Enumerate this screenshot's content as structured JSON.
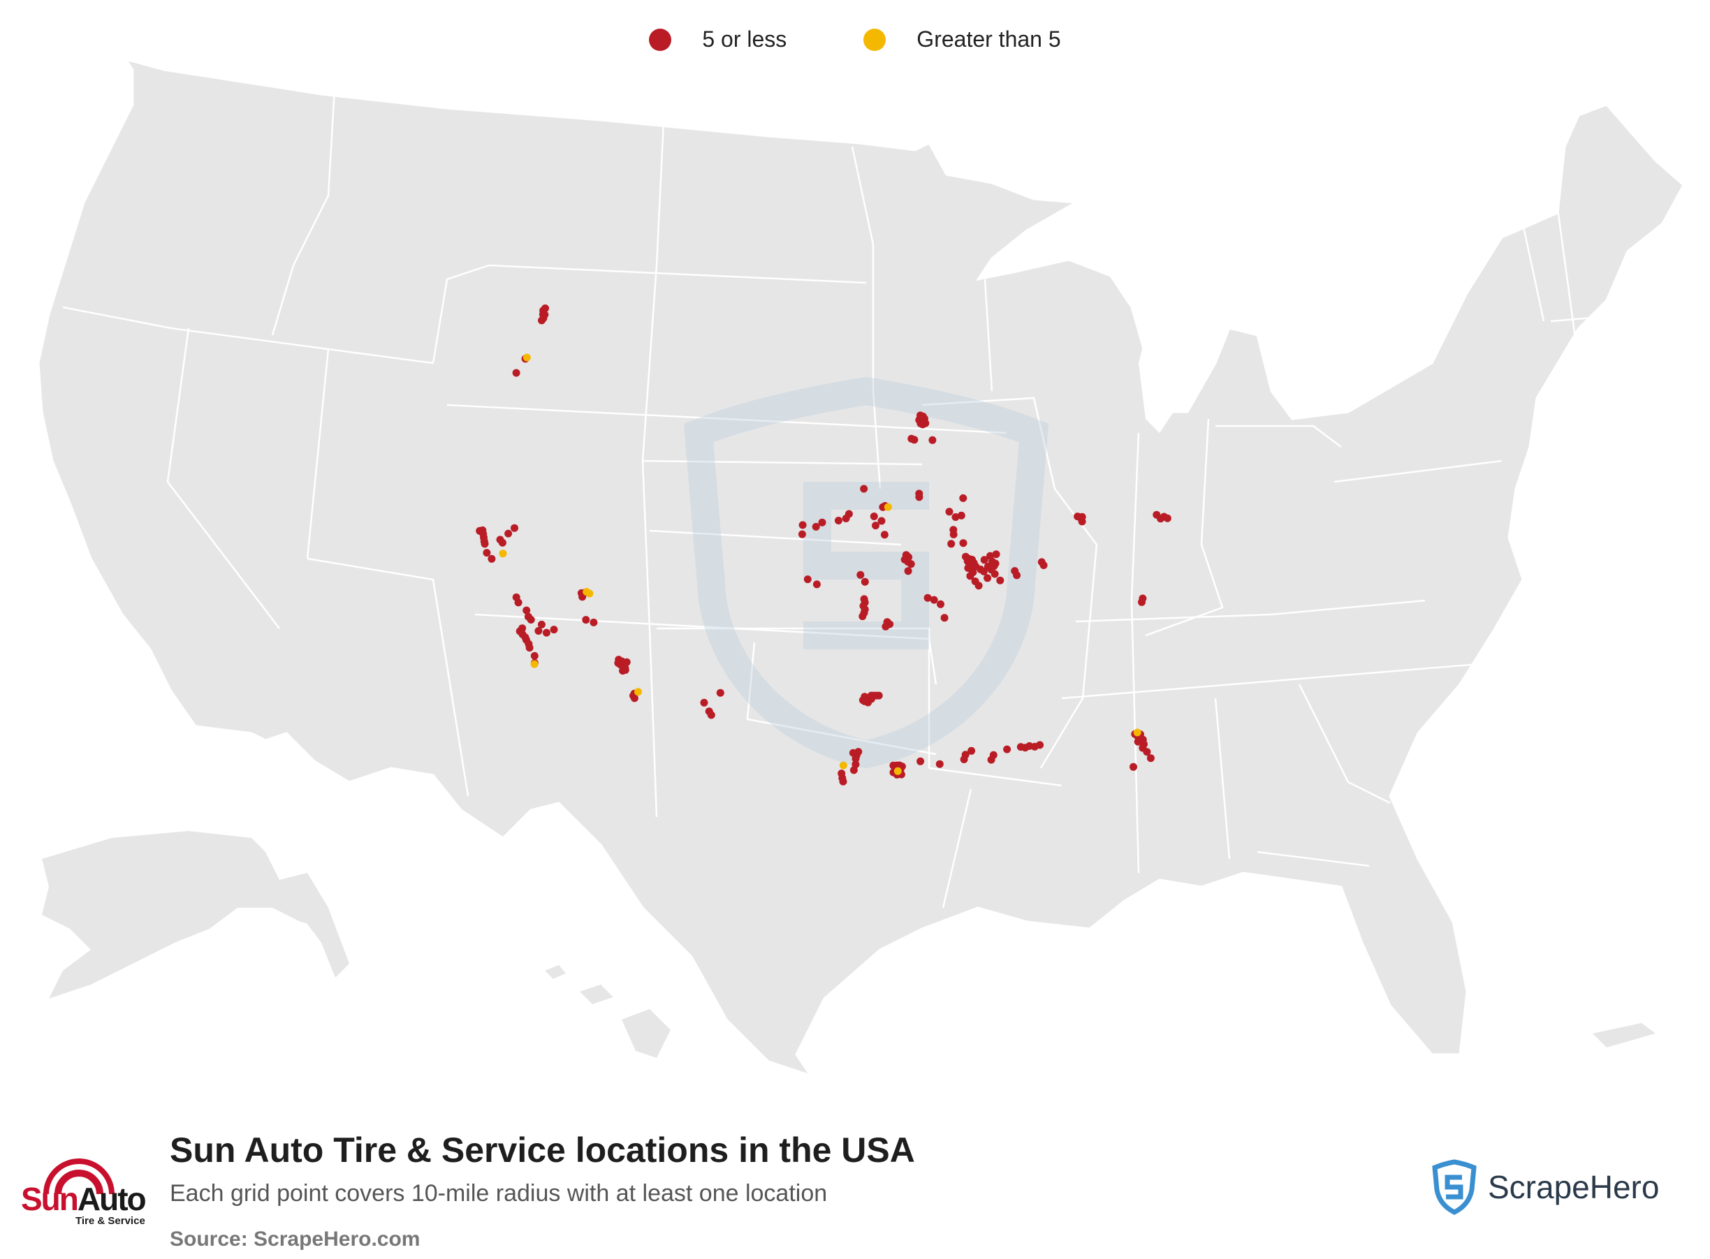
{
  "legend": {
    "items": [
      {
        "label": "5 or less",
        "color": "#b91c25"
      },
      {
        "label": "Greater than 5",
        "color": "#f5b800"
      }
    ]
  },
  "footer": {
    "title": "Sun Auto Tire & Service locations in the USA",
    "subtitle": "Each grid point covers 10-mile radius with at least one location",
    "source": "Source: ScrapeHero.com"
  },
  "brand": {
    "name_part1": "Sun",
    "name_part2": "Auto",
    "tagline": "Tire & Service"
  },
  "scrapehero": {
    "name": "ScrapeHero",
    "color": "#3a8fd0"
  },
  "map": {
    "land_color": "#e6e6e6",
    "border_color": "#ffffff"
  },
  "points": {
    "color_low": "#b91c25",
    "color_high": "#f5b800",
    "low": [
      [
        44.83,
        -123.03
      ],
      [
        45.53,
        -122.68
      ],
      [
        47.88,
        -122.3
      ],
      [
        47.76,
        -122.4
      ],
      [
        47.61,
        -122.2
      ],
      [
        47.6,
        -122.33
      ],
      [
        47.44,
        -122.22
      ],
      [
        47.33,
        -122.3
      ],
      [
        37.84,
        -122.25
      ],
      [
        37.78,
        -122.42
      ],
      [
        37.7,
        -122.15
      ],
      [
        37.55,
        -122.05
      ],
      [
        37.4,
        -121.95
      ],
      [
        37.3,
        -121.88
      ],
      [
        37.65,
        -121.0
      ],
      [
        37.55,
        -120.8
      ],
      [
        36.95,
        -121.6
      ],
      [
        36.75,
        -121.2
      ],
      [
        38.0,
        -120.6
      ],
      [
        38.3,
        -120.3
      ],
      [
        35.4,
        -119.1
      ],
      [
        35.2,
        -118.9
      ],
      [
        34.95,
        -118.3
      ],
      [
        34.7,
        -118.1
      ],
      [
        34.6,
        -117.9
      ],
      [
        34.5,
        -117.2
      ],
      [
        34.2,
        -117.3
      ],
      [
        34.2,
        -116.8
      ],
      [
        34.4,
        -116.4
      ],
      [
        34.15,
        -118.3
      ],
      [
        34.0,
        -118.4
      ],
      [
        33.9,
        -118.2
      ],
      [
        33.8,
        -118.0
      ],
      [
        33.7,
        -117.9
      ],
      [
        33.55,
        -117.7
      ],
      [
        33.4,
        -117.6
      ],
      [
        33.1,
        -117.2
      ],
      [
        32.8,
        -117.1
      ],
      [
        36.2,
        -115.2
      ],
      [
        36.05,
        -115.1
      ],
      [
        36.25,
        -115.0
      ],
      [
        35.1,
        -114.6
      ],
      [
        35.05,
        -114.1
      ],
      [
        33.65,
        -112.2
      ],
      [
        33.6,
        -112.0
      ],
      [
        33.55,
        -111.9
      ],
      [
        33.5,
        -112.2
      ],
      [
        33.45,
        -112.05
      ],
      [
        33.4,
        -111.9
      ],
      [
        33.35,
        -111.75
      ],
      [
        33.2,
        -111.85
      ],
      [
        33.25,
        -111.7
      ],
      [
        33.6,
        -111.7
      ],
      [
        32.3,
        -110.95
      ],
      [
        32.2,
        -111.0
      ],
      [
        32.1,
        -110.9
      ],
      [
        32.3,
        -106.8
      ],
      [
        31.95,
        -106.45
      ],
      [
        31.8,
        -106.3
      ],
      [
        32.8,
        -105.9
      ],
      [
        45.15,
        -93.3
      ],
      [
        45.1,
        -93.1
      ],
      [
        45.05,
        -93.3
      ],
      [
        45.0,
        -93.2
      ],
      [
        45.0,
        -93.0
      ],
      [
        44.95,
        -93.4
      ],
      [
        44.9,
        -93.25
      ],
      [
        44.85,
        -93.1
      ],
      [
        44.8,
        -93.3
      ],
      [
        44.75,
        -93.15
      ],
      [
        44.8,
        -92.95
      ],
      [
        44.15,
        -94.0
      ],
      [
        44.1,
        -93.8
      ],
      [
        44.05,
        -92.5
      ],
      [
        41.25,
        -95.95
      ],
      [
        41.2,
        -96.1
      ],
      [
        40.8,
        -96.7
      ],
      [
        40.6,
        -96.2
      ],
      [
        40.4,
        -96.6
      ],
      [
        40.0,
        -96.0
      ],
      [
        40.9,
        -98.4
      ],
      [
        40.7,
        -98.6
      ],
      [
        40.6,
        -99.1
      ],
      [
        40.5,
        -100.2
      ],
      [
        40.3,
        -100.6
      ],
      [
        40.35,
        -101.5
      ],
      [
        39.95,
        -101.5
      ],
      [
        42.0,
        -97.4
      ],
      [
        39.1,
        -94.6
      ],
      [
        39.0,
        -94.45
      ],
      [
        38.9,
        -94.7
      ],
      [
        38.8,
        -94.5
      ],
      [
        38.7,
        -94.3
      ],
      [
        38.4,
        -94.5
      ],
      [
        38.25,
        -97.6
      ],
      [
        37.95,
        -97.3
      ],
      [
        38.0,
        -101.0
      ],
      [
        37.8,
        -100.4
      ],
      [
        37.2,
        -97.35
      ],
      [
        37.05,
        -97.3
      ],
      [
        36.9,
        -97.4
      ],
      [
        36.75,
        -97.3
      ],
      [
        36.6,
        -97.35
      ],
      [
        36.45,
        -97.45
      ],
      [
        36.2,
        -95.9
      ],
      [
        36.1,
        -95.75
      ],
      [
        36.0,
        -96.0
      ],
      [
        37.2,
        -93.3
      ],
      [
        37.1,
        -92.9
      ],
      [
        36.9,
        -92.5
      ],
      [
        36.3,
        -92.3
      ],
      [
        38.9,
        -90.7
      ],
      [
        38.8,
        -90.5
      ],
      [
        38.75,
        -90.3
      ],
      [
        38.7,
        -90.6
      ],
      [
        38.65,
        -90.4
      ],
      [
        38.6,
        -90.2
      ],
      [
        38.55,
        -90.5
      ],
      [
        38.5,
        -90.35
      ],
      [
        38.45,
        -90.1
      ],
      [
        38.4,
        -90.6
      ],
      [
        38.35,
        -90.4
      ],
      [
        38.2,
        -90.3
      ],
      [
        38.05,
        -90.5
      ],
      [
        37.8,
        -90.2
      ],
      [
        37.6,
        -90.0
      ],
      [
        39.9,
        -91.4
      ],
      [
        39.5,
        -90.8
      ],
      [
        38.3,
        -89.8
      ],
      [
        38.7,
        -89.5
      ],
      [
        38.85,
        -89.1
      ],
      [
        38.9,
        -88.7
      ],
      [
        38.6,
        -89.0
      ],
      [
        38.4,
        -89.3
      ],
      [
        38.2,
        -89.6
      ],
      [
        38.05,
        -88.9
      ],
      [
        37.9,
        -89.4
      ],
      [
        37.75,
        -88.6
      ],
      [
        38.5,
        -88.8
      ],
      [
        38.4,
        -88.9
      ],
      [
        38.25,
        -89.1
      ],
      [
        38.1,
        -87.6
      ],
      [
        37.9,
        -87.5
      ],
      [
        38.2,
        -85.7
      ],
      [
        38.35,
        -85.8
      ],
      [
        39.5,
        -91.6
      ],
      [
        40.1,
        -91.4
      ],
      [
        40.65,
        -91.2
      ],
      [
        40.7,
        -90.8
      ],
      [
        40.9,
        -91.6
      ],
      [
        41.45,
        -90.6
      ],
      [
        41.6,
        -93.6
      ],
      [
        41.75,
        -93.6
      ],
      [
        30.0,
        -90.05
      ],
      [
        30.2,
        -89.9
      ],
      [
        30.4,
        -89.1
      ],
      [
        30.45,
        -88.3
      ],
      [
        30.4,
        -88.05
      ],
      [
        30.45,
        -87.8
      ],
      [
        30.4,
        -87.5
      ],
      [
        30.45,
        -87.2
      ],
      [
        30.3,
        -91.5
      ],
      [
        30.45,
        -91.15
      ],
      [
        30.1,
        -91.6
      ],
      [
        29.95,
        -93.0
      ],
      [
        30.1,
        -94.1
      ],
      [
        33.0,
        -96.9
      ],
      [
        33.0,
        -96.75
      ],
      [
        33.0,
        -96.6
      ],
      [
        33.0,
        -96.45
      ],
      [
        32.95,
        -97.3
      ],
      [
        32.9,
        -97.1
      ],
      [
        32.85,
        -96.9
      ],
      [
        32.8,
        -97.4
      ],
      [
        32.75,
        -97.3
      ],
      [
        32.7,
        -97.1
      ],
      [
        30.55,
        -97.65
      ],
      [
        30.4,
        -97.75
      ],
      [
        30.25,
        -97.8
      ],
      [
        30.5,
        -97.95
      ],
      [
        30.0,
        -97.8
      ],
      [
        29.75,
        -97.9
      ],
      [
        29.6,
        -98.6
      ],
      [
        29.4,
        -98.55
      ],
      [
        29.25,
        -98.5
      ],
      [
        29.95,
        -95.65
      ],
      [
        29.95,
        -95.45
      ],
      [
        29.95,
        -95.3
      ],
      [
        29.8,
        -95.55
      ],
      [
        29.75,
        -95.25
      ],
      [
        29.65,
        -95.65
      ],
      [
        29.55,
        -95.45
      ],
      [
        29.55,
        -95.2
      ],
      [
        29.9,
        -95.15
      ],
      [
        30.35,
        -81.7
      ],
      [
        30.3,
        -81.4
      ],
      [
        30.2,
        -81.55
      ],
      [
        30.05,
        -81.3
      ],
      [
        30.0,
        -81.6
      ],
      [
        29.85,
        -81.3
      ],
      [
        29.7,
        -81.4
      ],
      [
        29.5,
        -81.2
      ],
      [
        29.2,
        -81.05
      ],
      [
        28.95,
        -82.1
      ],
      [
        40.1,
        -83.05
      ],
      [
        40.05,
        -82.9
      ],
      [
        40.05,
        -82.75
      ],
      [
        39.85,
        -82.8
      ],
      [
        39.55,
        -77.85
      ],
      [
        39.4,
        -77.4
      ],
      [
        39.35,
        -77.65
      ],
      [
        39.3,
        -77.2
      ],
      [
        36.1,
        -79.8
      ],
      [
        35.95,
        -79.9
      ]
    ],
    "high": [
      [
        45.6,
        -122.6
      ],
      [
        37.1,
        -120.6
      ],
      [
        36.3,
        -114.9
      ],
      [
        36.25,
        -114.7
      ],
      [
        32.75,
        -117.1
      ],
      [
        32.4,
        -110.75
      ],
      [
        41.2,
        -95.75
      ],
      [
        29.95,
        -98.5
      ],
      [
        29.7,
        -95.4
      ],
      [
        30.4,
        -81.55
      ]
    ]
  }
}
